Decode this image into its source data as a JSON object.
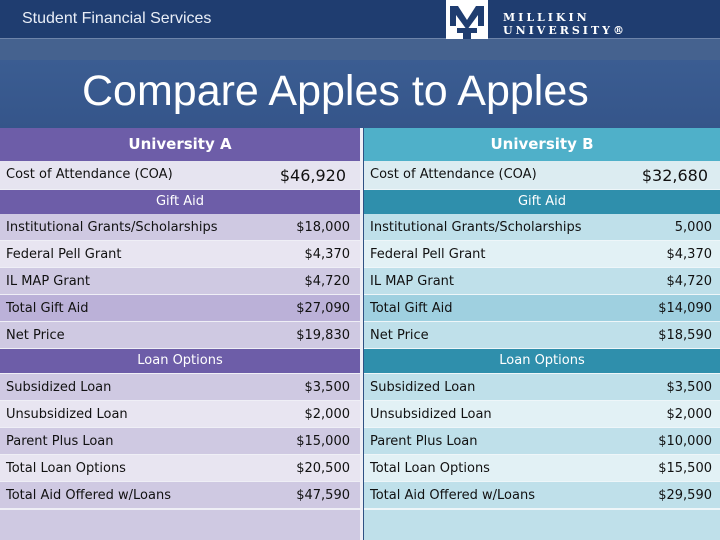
{
  "header": {
    "service": "Student Financial Services",
    "university": "MILLIKIN UNIVERSITY®"
  },
  "title": "Compare Apples to Apples",
  "colors": {
    "purple": "#6d5da8",
    "teal": "#4fb0c9",
    "navy": "#2f5183"
  },
  "university_a": {
    "name": "University A",
    "coa_label": "Cost of Attendance (COA)",
    "coa_value": "$46,920",
    "gift_aid_label": "Gift Aid",
    "gift_rows": [
      {
        "label": "Institutional Grants/Scholarships",
        "value": "$18,000"
      },
      {
        "label": "Federal Pell Grant",
        "value": "$4,370"
      },
      {
        "label": "IL MAP Grant",
        "value": "$4,720"
      },
      {
        "label": "Total Gift Aid",
        "value": "$27,090"
      },
      {
        "label": "Net Price",
        "value": "$19,830"
      }
    ],
    "loan_label": "Loan Options",
    "loan_rows": [
      {
        "label": "Subsidized Loan",
        "value": "$3,500"
      },
      {
        "label": "Unsubsidized Loan",
        "value": "$2,000"
      },
      {
        "label": "Parent Plus Loan",
        "value": "$15,000"
      },
      {
        "label": "Total Loan Options",
        "value": "$20,500"
      },
      {
        "label": "Total Aid Offered w/Loans",
        "value": "$47,590"
      }
    ]
  },
  "university_b": {
    "name": "University B",
    "coa_label": "Cost of Attendance (COA)",
    "coa_value": "$32,680",
    "gift_aid_label": "Gift Aid",
    "gift_rows": [
      {
        "label": "Institutional Grants/Scholarships",
        "value": "5,000"
      },
      {
        "label": "Federal Pell Grant",
        "value": "$4,370"
      },
      {
        "label": "IL MAP Grant",
        "value": "$4,720"
      },
      {
        "label": "Total Gift Aid",
        "value": "$14,090"
      },
      {
        "label": "Net Price",
        "value": "$18,590"
      }
    ],
    "loan_label": "Loan Options",
    "loan_rows": [
      {
        "label": "Subsidized Loan",
        "value": "$3,500"
      },
      {
        "label": "Unsubsidized Loan",
        "value": "$2,000"
      },
      {
        "label": "Parent Plus Loan",
        "value": "$10,000"
      },
      {
        "label": "Total Loan Options",
        "value": "$15,500"
      },
      {
        "label": "Total Aid Offered w/Loans",
        "value": "$29,590"
      }
    ]
  }
}
